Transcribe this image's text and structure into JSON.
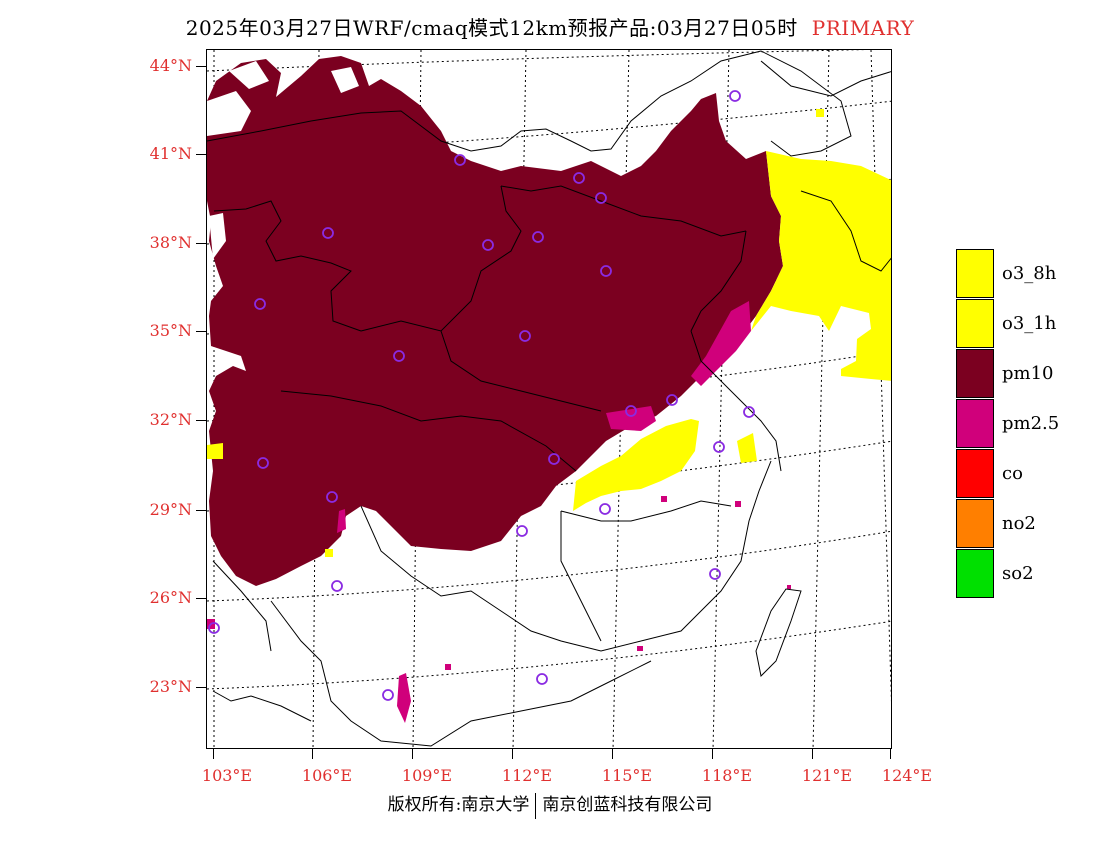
{
  "title": {
    "main": "2025年03月27日WRF/cmaq模式12km预报产品:03月27日05时",
    "tag": "PRIMARY"
  },
  "lat_labels": [
    "44°N",
    "41°N",
    "38°N",
    "35°N",
    "32°N",
    "29°N",
    "26°N",
    "23°N"
  ],
  "lon_labels": [
    "103°E",
    "106°E",
    "109°E",
    "112°E",
    "115°E",
    "118°E",
    "121°E",
    "124°E"
  ],
  "legend": [
    {
      "label": "o3_8h",
      "color": "#ffff00"
    },
    {
      "label": "o3_1h",
      "color": "#ffff00"
    },
    {
      "label": "pm10",
      "color": "#7b0020"
    },
    {
      "label": "pm2.5",
      "color": "#d0007b"
    },
    {
      "label": "co",
      "color": "#ff0000"
    },
    {
      "label": "no2",
      "color": "#ff7f00"
    },
    {
      "label": "so2",
      "color": "#00e000"
    }
  ],
  "footer": {
    "left": "版权所有:南京大学",
    "right": "南京创蓝科技有限公司"
  },
  "colors": {
    "pm10": "#7b0020",
    "pm25": "#d0007b",
    "o3": "#ffff00",
    "station": "#8a2be2",
    "axis_text": "#e0302f"
  }
}
